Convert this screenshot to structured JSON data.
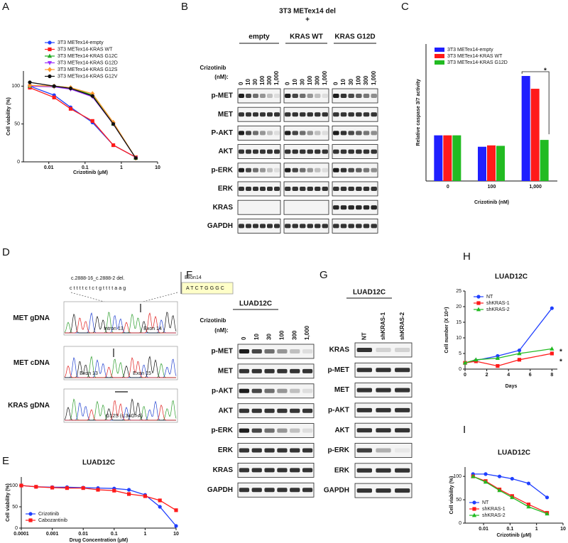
{
  "chart_data": [
    {
      "panel": "A",
      "type": "line",
      "xlabel": "Crizotinib (μM)",
      "ylabel": "Cell viability (%)",
      "xscale": "log",
      "xlim": [
        0.002,
        10
      ],
      "xticks": [
        0.01,
        0.1,
        1,
        10
      ],
      "ylim": [
        0,
        120
      ],
      "yticks": [
        0,
        50,
        100
      ],
      "legend": "top",
      "x": [
        0.003,
        0.014,
        0.04,
        0.16,
        0.6,
        2.5
      ],
      "series": [
        {
          "name": "3T3 METex14-empty",
          "color": "#1f3fff",
          "values": [
            100,
            88,
            72,
            52,
            22,
            6
          ]
        },
        {
          "name": "3T3 METex14-KRAS WT",
          "color": "#ff1a1a",
          "values": [
            98,
            85,
            70,
            54,
            22,
            6
          ]
        },
        {
          "name": "3T3 METex14-KRAS G12C",
          "color": "#22aa22",
          "values": [
            100,
            100,
            98,
            88,
            50,
            5
          ]
        },
        {
          "name": "3T3 METex14-KRAS G12D",
          "color": "#9b30ff",
          "values": [
            100,
            99,
            96,
            86,
            50,
            5
          ]
        },
        {
          "name": "3T3 METex14-KRAS G12S",
          "color": "#ff9a2e",
          "values": [
            101,
            100,
            98,
            90,
            52,
            5
          ]
        },
        {
          "name": "3T3 METex14-KRAS G12V",
          "color": "#111111",
          "values": [
            105,
            100,
            97,
            87,
            50,
            5
          ]
        }
      ]
    },
    {
      "panel": "C",
      "type": "bar",
      "xlabel": "Crizotinib (nM)",
      "ylabel": "Relative caspase 3/7 activity",
      "categories": [
        "0",
        "100",
        "1,000"
      ],
      "ylim": [
        0,
        3
      ],
      "legend": "upper left",
      "annotations": [
        "*"
      ],
      "series": [
        {
          "name": "3T3 METex14-empty",
          "color": "#1f1fff",
          "values": [
            1,
            0.75,
            2.3
          ]
        },
        {
          "name": "3T3 METex14-KRAS WT",
          "color": "#ff1a1a",
          "values": [
            1,
            0.78,
            2.02
          ]
        },
        {
          "name": "3T3 METex14-KRAS G12D",
          "color": "#22bb22",
          "values": [
            1,
            0.77,
            0.9
          ]
        }
      ]
    },
    {
      "panel": "E",
      "type": "line",
      "title": "LUAD12C",
      "xlabel": "Drug Concentration (μM)",
      "ylabel": "Cell viability (%)",
      "xscale": "log",
      "xlim": [
        0.0001,
        10
      ],
      "xticks": [
        0.0001,
        0.001,
        0.01,
        0.1,
        1,
        10
      ],
      "ylim": [
        0,
        120
      ],
      "yticks": [
        0,
        50,
        100
      ],
      "legend": "lower left",
      "x": [
        0.0001,
        0.0003,
        0.001,
        0.003,
        0.01,
        0.03,
        0.1,
        0.3,
        1,
        3,
        10
      ],
      "series": [
        {
          "name": "Crizotinib",
          "color": "#1f3fff",
          "values": [
            100,
            97,
            96,
            96,
            95,
            94,
            93,
            90,
            78,
            50,
            5
          ]
        },
        {
          "name": "Cabozantinib",
          "color": "#ff1a1a",
          "values": [
            100,
            97,
            95,
            94,
            94,
            90,
            88,
            80,
            75,
            65,
            42
          ]
        }
      ]
    },
    {
      "panel": "H",
      "type": "line",
      "title": "LUAD12C",
      "xlabel": "Days",
      "ylabel": "Cell number (X 10⁴)",
      "xlim": [
        0,
        8.5
      ],
      "xticks": [
        0,
        2,
        4,
        6,
        8
      ],
      "ylim": [
        0,
        25
      ],
      "yticks": [
        0,
        5,
        10,
        15,
        20,
        25
      ],
      "legend": "upper left",
      "annotations": [
        "*",
        "*"
      ],
      "x": [
        0,
        1,
        3,
        5,
        8
      ],
      "series": [
        {
          "name": "NT",
          "color": "#1f3fff",
          "values": [
            2,
            2.8,
            4.2,
            6,
            19.5
          ]
        },
        {
          "name": "shKRAS-1",
          "color": "#ff1a1a",
          "values": [
            2,
            2.5,
            1,
            3,
            5
          ]
        },
        {
          "name": "shKRAS-2",
          "color": "#22bb22",
          "values": [
            2,
            3,
            3.5,
            5,
            6.5
          ]
        }
      ]
    },
    {
      "panel": "I",
      "type": "line",
      "title": "LUAD12C",
      "xlabel": "Crizotinib (μM)",
      "ylabel": "Cell viability (%)",
      "xscale": "log",
      "xlim": [
        0.002,
        10
      ],
      "xticks": [
        0.01,
        0.1,
        1,
        10
      ],
      "ylim": [
        0,
        120
      ],
      "yticks": [
        0,
        50,
        100
      ],
      "legend": "lower left",
      "x": [
        0.004,
        0.012,
        0.04,
        0.12,
        0.5,
        2.5
      ],
      "series": [
        {
          "name": "NT",
          "color": "#1f3fff",
          "values": [
            105,
            105,
            100,
            95,
            85,
            55
          ]
        },
        {
          "name": "shKRAS-1",
          "color": "#ff1a1a",
          "values": [
            100,
            90,
            72,
            58,
            40,
            22
          ]
        },
        {
          "name": "shKRAS-2",
          "color": "#22bb22",
          "values": [
            100,
            88,
            70,
            55,
            35,
            20
          ]
        }
      ]
    }
  ],
  "blots": [
    {
      "panel": "B",
      "title": "3T3 METex14 del",
      "subtitle": "+",
      "dose_label": [
        "Crizotinib",
        "(nM):"
      ],
      "groups": [
        "empty",
        "KRAS WT",
        "KRAS G12D"
      ],
      "lanes": [
        "0",
        "10",
        "30",
        "100",
        "300",
        "1,000"
      ],
      "rows": [
        "p-MET",
        "MET",
        "P-AKT",
        "AKT",
        "p-ERK",
        "ERK",
        "KRAS",
        "GAPDH"
      ]
    },
    {
      "panel": "F",
      "title": "LUAD12C",
      "dose_label": [
        "Crizotinib",
        "(nM):"
      ],
      "lanes": [
        "0",
        "10",
        "30",
        "100",
        "300",
        "1,000"
      ],
      "rows": [
        "p-MET",
        "MET",
        "p-AKT",
        "AKT",
        "p-ERK",
        "ERK",
        "KRAS",
        "GAPDH"
      ]
    },
    {
      "panel": "G",
      "title": "LUAD12C",
      "lanes": [
        "NT",
        "shKRAS-1",
        "shKRAS-2"
      ],
      "rows": [
        "KRAS",
        "p-MET",
        "MET",
        "p-AKT",
        "AKT",
        "p-ERK",
        "ERK",
        "GAPDH"
      ]
    }
  ],
  "sequencing": {
    "panel": "D",
    "deletion": "c.2888-16_c.2888-2 del.",
    "exon_label": "Exon14",
    "deleted_sequence": "cttttctctgttttaag",
    "exon_sequence": "ATCTGGGC",
    "traces": [
      {
        "label": "MET gDNA",
        "annotations": [
          "Intron 13",
          "Exon 14"
        ]
      },
      {
        "label": "MET cDNA",
        "annotations": [
          "Exon 13",
          "Exon 15"
        ]
      },
      {
        "label": "KRAS gDNA",
        "annotations": [
          "G12S (c.34G>A)"
        ]
      }
    ]
  }
}
